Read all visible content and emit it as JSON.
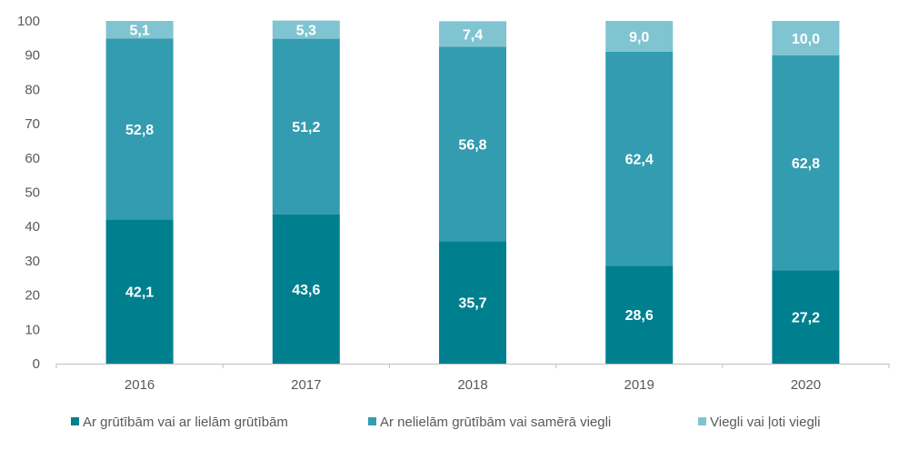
{
  "chart_data": {
    "type": "bar",
    "stacked": true,
    "categories": [
      "2016",
      "2017",
      "2018",
      "2019",
      "2020"
    ],
    "series": [
      {
        "name": "Ar grūtībām vai ar lielām grūtībām",
        "color": "#00808F",
        "values": [
          42.1,
          43.6,
          35.7,
          28.6,
          27.2
        ],
        "labels": [
          "42,1",
          "43,6",
          "35,7",
          "28,6",
          "27,2"
        ]
      },
      {
        "name": "Ar nelielām grūtībām vai samērā viegli",
        "color": "#339CB0",
        "values": [
          52.8,
          51.2,
          56.8,
          62.4,
          62.8
        ],
        "labels": [
          "52,8",
          "51,2",
          "56,8",
          "62,4",
          "62,8"
        ]
      },
      {
        "name": "Viegli vai ļoti viegli",
        "color": "#80C4D2",
        "values": [
          5.1,
          5.3,
          7.4,
          9.0,
          10.0
        ],
        "labels": [
          "5,1",
          "5,3",
          "7,4",
          "9,0",
          "10,0"
        ]
      }
    ],
    "ylim": [
      0,
      100
    ],
    "yticks": [
      "0",
      "10",
      "20",
      "30",
      "40",
      "50",
      "60",
      "70",
      "80",
      "90",
      "100"
    ],
    "grid": false,
    "legend_position": "bottom",
    "xlabel": "",
    "ylabel": "",
    "title": ""
  }
}
